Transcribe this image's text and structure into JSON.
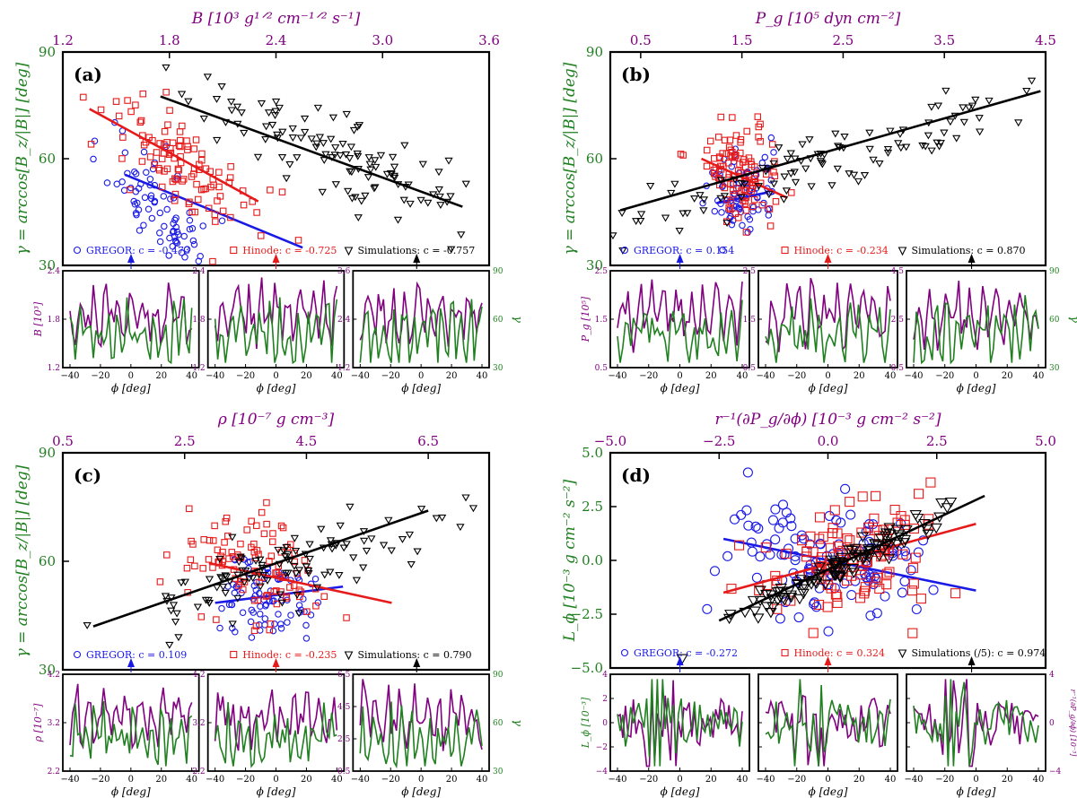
{
  "colors": {
    "gregor": "#1a1ae6",
    "hinode": "#e61a1a",
    "sim": "#000000",
    "purple": "#800080",
    "green": "#208020",
    "axis": "#000000"
  },
  "chart_data": [
    {
      "id": "a",
      "type": "scatter",
      "panel_label": "(a)",
      "title": "",
      "xlabel": "B [10³ g¹ᐟ² cm⁻¹ᐟ² s⁻¹]",
      "ylabel": "γ = arccos[B_z/|B|] [deg]",
      "xlim": [
        1.2,
        3.6
      ],
      "xticks": [
        1.2,
        1.8,
        2.4,
        3.0,
        3.6
      ],
      "xtick_labels": [
        "1.2",
        "1.8",
        "2.4",
        "3.0",
        "3.6"
      ],
      "ylim": [
        30,
        90
      ],
      "yticks": [
        30,
        60,
        90
      ],
      "ytick_labels": [
        "30",
        "60",
        "90"
      ],
      "legend": [
        {
          "series": "GREGOR",
          "text": "GREGOR: c = -0.473"
        },
        {
          "series": "Hinode",
          "text": "Hinode: c = -0.725"
        },
        {
          "series": "Simulations",
          "text": "Simulations: c = -0.757"
        }
      ],
      "series": [
        {
          "name": "GREGOR",
          "marker": "circle",
          "center": [
            1.75,
            46
          ],
          "spread": [
            0.15,
            7
          ],
          "slope": -50,
          "count": 80,
          "seed": 11,
          "fit": [
            [
              1.55,
              55.5
            ],
            [
              2.55,
              35
            ]
          ]
        },
        {
          "name": "Hinode",
          "marker": "square",
          "center": [
            1.9,
            57
          ],
          "spread": [
            0.22,
            7
          ],
          "slope": -30,
          "count": 105,
          "seed": 12,
          "fit": [
            [
              1.35,
              74
            ],
            [
              2.3,
              48
            ]
          ]
        },
        {
          "name": "Simulations",
          "marker": "triangle",
          "center": [
            2.75,
            61
          ],
          "spread": [
            0.42,
            6
          ],
          "slope": -19,
          "count": 110,
          "seed": 13,
          "fit": [
            [
              1.75,
              77.5
            ],
            [
              3.45,
              46.5
            ]
          ]
        }
      ],
      "insets": [
        {
          "ylabel": "B [10³]",
          "ylim": [
            1.2,
            2.4
          ],
          "yticks": [
            "1.2",
            "1.8",
            "2.4"
          ],
          "right": "",
          "seed": 21
        },
        {
          "ylabel": "",
          "ylim": [
            1.2,
            2.4
          ],
          "yticks": [
            "1.2",
            "1.8",
            "2.4"
          ],
          "right": "",
          "seed": 22
        },
        {
          "ylabel": "",
          "ylim": [
            1.2,
            3.6
          ],
          "yticks": [
            "1.2",
            "2.4",
            "3.6"
          ],
          "right": "γ",
          "rticks": [
            "30",
            "60",
            "90"
          ],
          "seed": 23
        }
      ],
      "inset_xlabel": "ϕ [deg]",
      "inset_xticks": [
        "−40",
        "−20",
        "0",
        "20",
        "40"
      ]
    },
    {
      "id": "b",
      "type": "scatter",
      "panel_label": "(b)",
      "title": "",
      "xlabel": "P_g [10⁵ dyn cm⁻²]",
      "ylabel": "γ = arccos[B_z/|B|] [deg]",
      "xlim": [
        0.2,
        4.5
      ],
      "xticks": [
        0.5,
        1.5,
        2.5,
        3.5,
        4.5
      ],
      "xtick_labels": [
        "0.5",
        "1.5",
        "2.5",
        "3.5",
        "4.5"
      ],
      "ylim": [
        30,
        90
      ],
      "yticks": [
        30,
        60,
        90
      ],
      "ytick_labels": [
        "30",
        "60",
        "90"
      ],
      "legend": [
        {
          "series": "GREGOR",
          "text": "GREGOR: c = 0.154"
        },
        {
          "series": "Hinode",
          "text": "Hinode: c = -0.234"
        },
        {
          "series": "Simulations",
          "text": "Simulations: c = 0.870"
        }
      ],
      "series": [
        {
          "name": "GREGOR",
          "marker": "circle",
          "center": [
            1.5,
            50
          ],
          "spread": [
            0.18,
            6
          ],
          "slope": 4,
          "count": 80,
          "seed": 31,
          "fit": [
            [
              1.25,
              47.5
            ],
            [
              1.75,
              50.5
            ]
          ]
        },
        {
          "name": "Hinode",
          "marker": "square",
          "center": [
            1.45,
            57
          ],
          "spread": [
            0.2,
            7
          ],
          "slope": -8,
          "count": 105,
          "seed": 32,
          "fit": [
            [
              1.1,
              60
            ],
            [
              1.95,
              49
            ]
          ]
        },
        {
          "name": "Simulations",
          "marker": "triangle",
          "center": [
            2.2,
            58
          ],
          "spread": [
            1.1,
            4
          ],
          "slope": 8.2,
          "count": 110,
          "seed": 33,
          "fit": [
            [
              0.3,
              45.5
            ],
            [
              4.45,
              79
            ]
          ]
        }
      ],
      "insets": [
        {
          "ylabel": "P_g [10⁵]",
          "ylim": [
            0.5,
            2.5
          ],
          "yticks": [
            "0.5",
            "1.5",
            "2.5"
          ],
          "right": "",
          "seed": 41
        },
        {
          "ylabel": "",
          "ylim": [
            0.5,
            2.5
          ],
          "yticks": [
            "0.5",
            "1.5",
            "2.5"
          ],
          "right": "",
          "seed": 42
        },
        {
          "ylabel": "",
          "ylim": [
            0.5,
            4.5
          ],
          "yticks": [
            "0.5",
            "2.5",
            "4.5"
          ],
          "right": "γ",
          "rticks": [
            "30",
            "60",
            "90"
          ],
          "seed": 43
        }
      ],
      "inset_xlabel": "ϕ [deg]",
      "inset_xticks": [
        "−40",
        "−20",
        "0",
        "20",
        "40"
      ]
    },
    {
      "id": "c",
      "type": "scatter",
      "panel_label": "(c)",
      "title": "",
      "xlabel": "ρ [10⁻⁷ g cm⁻³]",
      "ylabel": "γ = arccos[B_z/|B|] [deg]",
      "xlim": [
        0.5,
        7.5
      ],
      "xticks": [
        0.5,
        2.5,
        4.5,
        6.5
      ],
      "xtick_labels": [
        "0.5",
        "2.5",
        "4.5",
        "6.5"
      ],
      "ylim": [
        30,
        90
      ],
      "yticks": [
        30,
        60,
        90
      ],
      "ytick_labels": [
        "30",
        "60",
        "90"
      ],
      "legend": [
        {
          "series": "GREGOR",
          "text": "GREGOR: c = 0.109"
        },
        {
          "series": "Hinode",
          "text": "Hinode: c = -0.235"
        },
        {
          "series": "Simulations",
          "text": "Simulations: c = 0.790"
        }
      ],
      "series": [
        {
          "name": "GREGOR",
          "marker": "circle",
          "center": [
            3.8,
            50
          ],
          "spread": [
            0.45,
            6
          ],
          "slope": 1.5,
          "count": 80,
          "seed": 51,
          "fit": [
            [
              3.0,
              48.5
            ],
            [
              5.1,
              53
            ]
          ]
        },
        {
          "name": "Hinode",
          "marker": "square",
          "center": [
            3.6,
            58
          ],
          "spread": [
            0.55,
            8
          ],
          "slope": -3.5,
          "count": 105,
          "seed": 52,
          "fit": [
            [
              2.9,
              59.5
            ],
            [
              5.9,
              48.5
            ]
          ]
        },
        {
          "name": "Simulations",
          "marker": "triangle",
          "center": [
            4.2,
            59
          ],
          "spread": [
            1.5,
            5
          ],
          "slope": 5.2,
          "count": 110,
          "seed": 53,
          "fit": [
            [
              1.0,
              42
            ],
            [
              6.5,
              74
            ]
          ]
        }
      ],
      "insets": [
        {
          "ylabel": "ρ [10⁻⁷]",
          "ylim": [
            2.2,
            4.2
          ],
          "yticks": [
            "2.2",
            "3.2",
            "4.2"
          ],
          "right": "",
          "seed": 61
        },
        {
          "ylabel": "",
          "ylim": [
            2.2,
            4.2
          ],
          "yticks": [
            "2.2",
            "3.2",
            "4.2"
          ],
          "right": "",
          "seed": 62
        },
        {
          "ylabel": "",
          "ylim": [
            0.5,
            6.5
          ],
          "yticks": [
            "0.5",
            "2.5",
            "4.5",
            "6.5"
          ],
          "right": "γ",
          "rticks": [
            "30",
            "60",
            "90"
          ],
          "seed": 63
        }
      ],
      "inset_xlabel": "ϕ [deg]",
      "inset_xticks": [
        "−40",
        "−20",
        "0",
        "20",
        "40"
      ]
    },
    {
      "id": "d",
      "type": "scatter",
      "panel_label": "(d)",
      "title": "",
      "xlabel": "r⁻¹(∂P_g/∂ϕ) [10⁻³ g cm⁻² s⁻²]",
      "ylabel": "L_ϕ [10⁻³ g cm⁻² s⁻²]",
      "xlim": [
        -5.0,
        5.0
      ],
      "xticks": [
        -5.0,
        -2.5,
        0.0,
        2.5,
        5.0
      ],
      "xtick_labels": [
        "−5.0",
        "−2.5",
        "0.0",
        "2.5",
        "5.0"
      ],
      "ylim": [
        -5.0,
        5.0
      ],
      "yticks": [
        -5.0,
        -2.5,
        0.0,
        2.5,
        5.0
      ],
      "ytick_labels": [
        "−5.0",
        "−2.5",
        "0.0",
        "2.5",
        "5.0"
      ],
      "legend": [
        {
          "series": "GREGOR",
          "text": "GREGOR: c = -0.272"
        },
        {
          "series": "Hinode",
          "text": "Hinode: c = 0.324"
        },
        {
          "series": "Simulations",
          "text": "Simulations (/5): c = 0.974"
        }
      ],
      "series": [
        {
          "name": "GREGOR",
          "marker": "circle",
          "center": [
            0.0,
            0.0
          ],
          "spread": [
            1.3,
            1.5
          ],
          "slope": -0.3,
          "count": 110,
          "seed": 71,
          "fit": [
            [
              -2.4,
              1.0
            ],
            [
              3.4,
              -1.4
            ]
          ]
        },
        {
          "name": "Hinode",
          "marker": "square",
          "center": [
            0.5,
            0.0
          ],
          "spread": [
            1.0,
            1.2
          ],
          "slope": 0.4,
          "count": 110,
          "seed": 72,
          "fit": [
            [
              -2.4,
              -1.5
            ],
            [
              3.4,
              1.7
            ]
          ]
        },
        {
          "name": "Simulations",
          "marker": "triangle",
          "center": [
            0.5,
            0.0
          ],
          "spread": [
            1.3,
            0.35
          ],
          "slope": 1.1,
          "count": 110,
          "seed": 73,
          "fit": [
            [
              -2.5,
              -2.8
            ],
            [
              3.6,
              3.0
            ]
          ]
        }
      ],
      "insets": [
        {
          "ylabel": "L_ϕ [10⁻³]",
          "ylim": [
            -4,
            4
          ],
          "yticks": [
            "−4",
            "−2",
            "0",
            "2",
            "4"
          ],
          "right": "",
          "seed": 81
        },
        {
          "ylabel": "",
          "ylim": [
            -4,
            4
          ],
          "yticks": [
            "",
            "",
            "",
            "",
            ""
          ],
          "right": "",
          "seed": 82
        },
        {
          "ylabel": "",
          "ylim": [
            -4,
            4
          ],
          "yticks": [
            "",
            "",
            "",
            "",
            ""
          ],
          "right": "r⁻¹(∂P_g/∂ϕ) [10⁻³]",
          "rticks": [
            "−4",
            "0",
            "4"
          ],
          "seed": 83
        }
      ],
      "inset_xlabel": "ϕ [deg]",
      "inset_xticks": [
        "−40",
        "−20",
        "0",
        "20",
        "40"
      ]
    }
  ]
}
